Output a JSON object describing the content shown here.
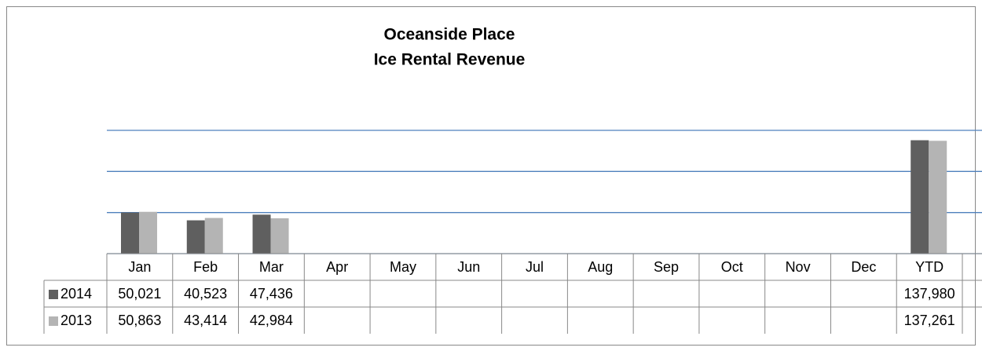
{
  "chart_data": {
    "type": "bar",
    "title": [
      "Oceanside Place",
      "Ice Rental Revenue"
    ],
    "categories": [
      "Jan",
      "Feb",
      "Mar",
      "Apr",
      "May",
      "Jun",
      "Jul",
      "Aug",
      "Sep",
      "Oct",
      "Nov",
      "Dec",
      "YTD"
    ],
    "series": [
      {
        "name": "2014",
        "color": "#5f5f5f",
        "values": [
          50021,
          40523,
          47436,
          null,
          null,
          null,
          null,
          null,
          null,
          null,
          null,
          null,
          137980
        ],
        "value_labels": [
          "50,021",
          "40,523",
          "47,436",
          null,
          null,
          null,
          null,
          null,
          null,
          null,
          null,
          null,
          "137,980"
        ]
      },
      {
        "name": "2013",
        "color": "#b4b4b4",
        "values": [
          50863,
          43414,
          42984,
          null,
          null,
          null,
          null,
          null,
          null,
          null,
          null,
          null,
          137261
        ],
        "value_labels": [
          "50,863",
          "43,414",
          "42,984",
          null,
          null,
          null,
          null,
          null,
          null,
          null,
          null,
          null,
          "137,261"
        ]
      }
    ],
    "ylim": [
      0,
      150000
    ],
    "yticks": [
      0,
      50000,
      100000,
      150000
    ],
    "grid": true,
    "grid_color": "#4f81bd"
  }
}
